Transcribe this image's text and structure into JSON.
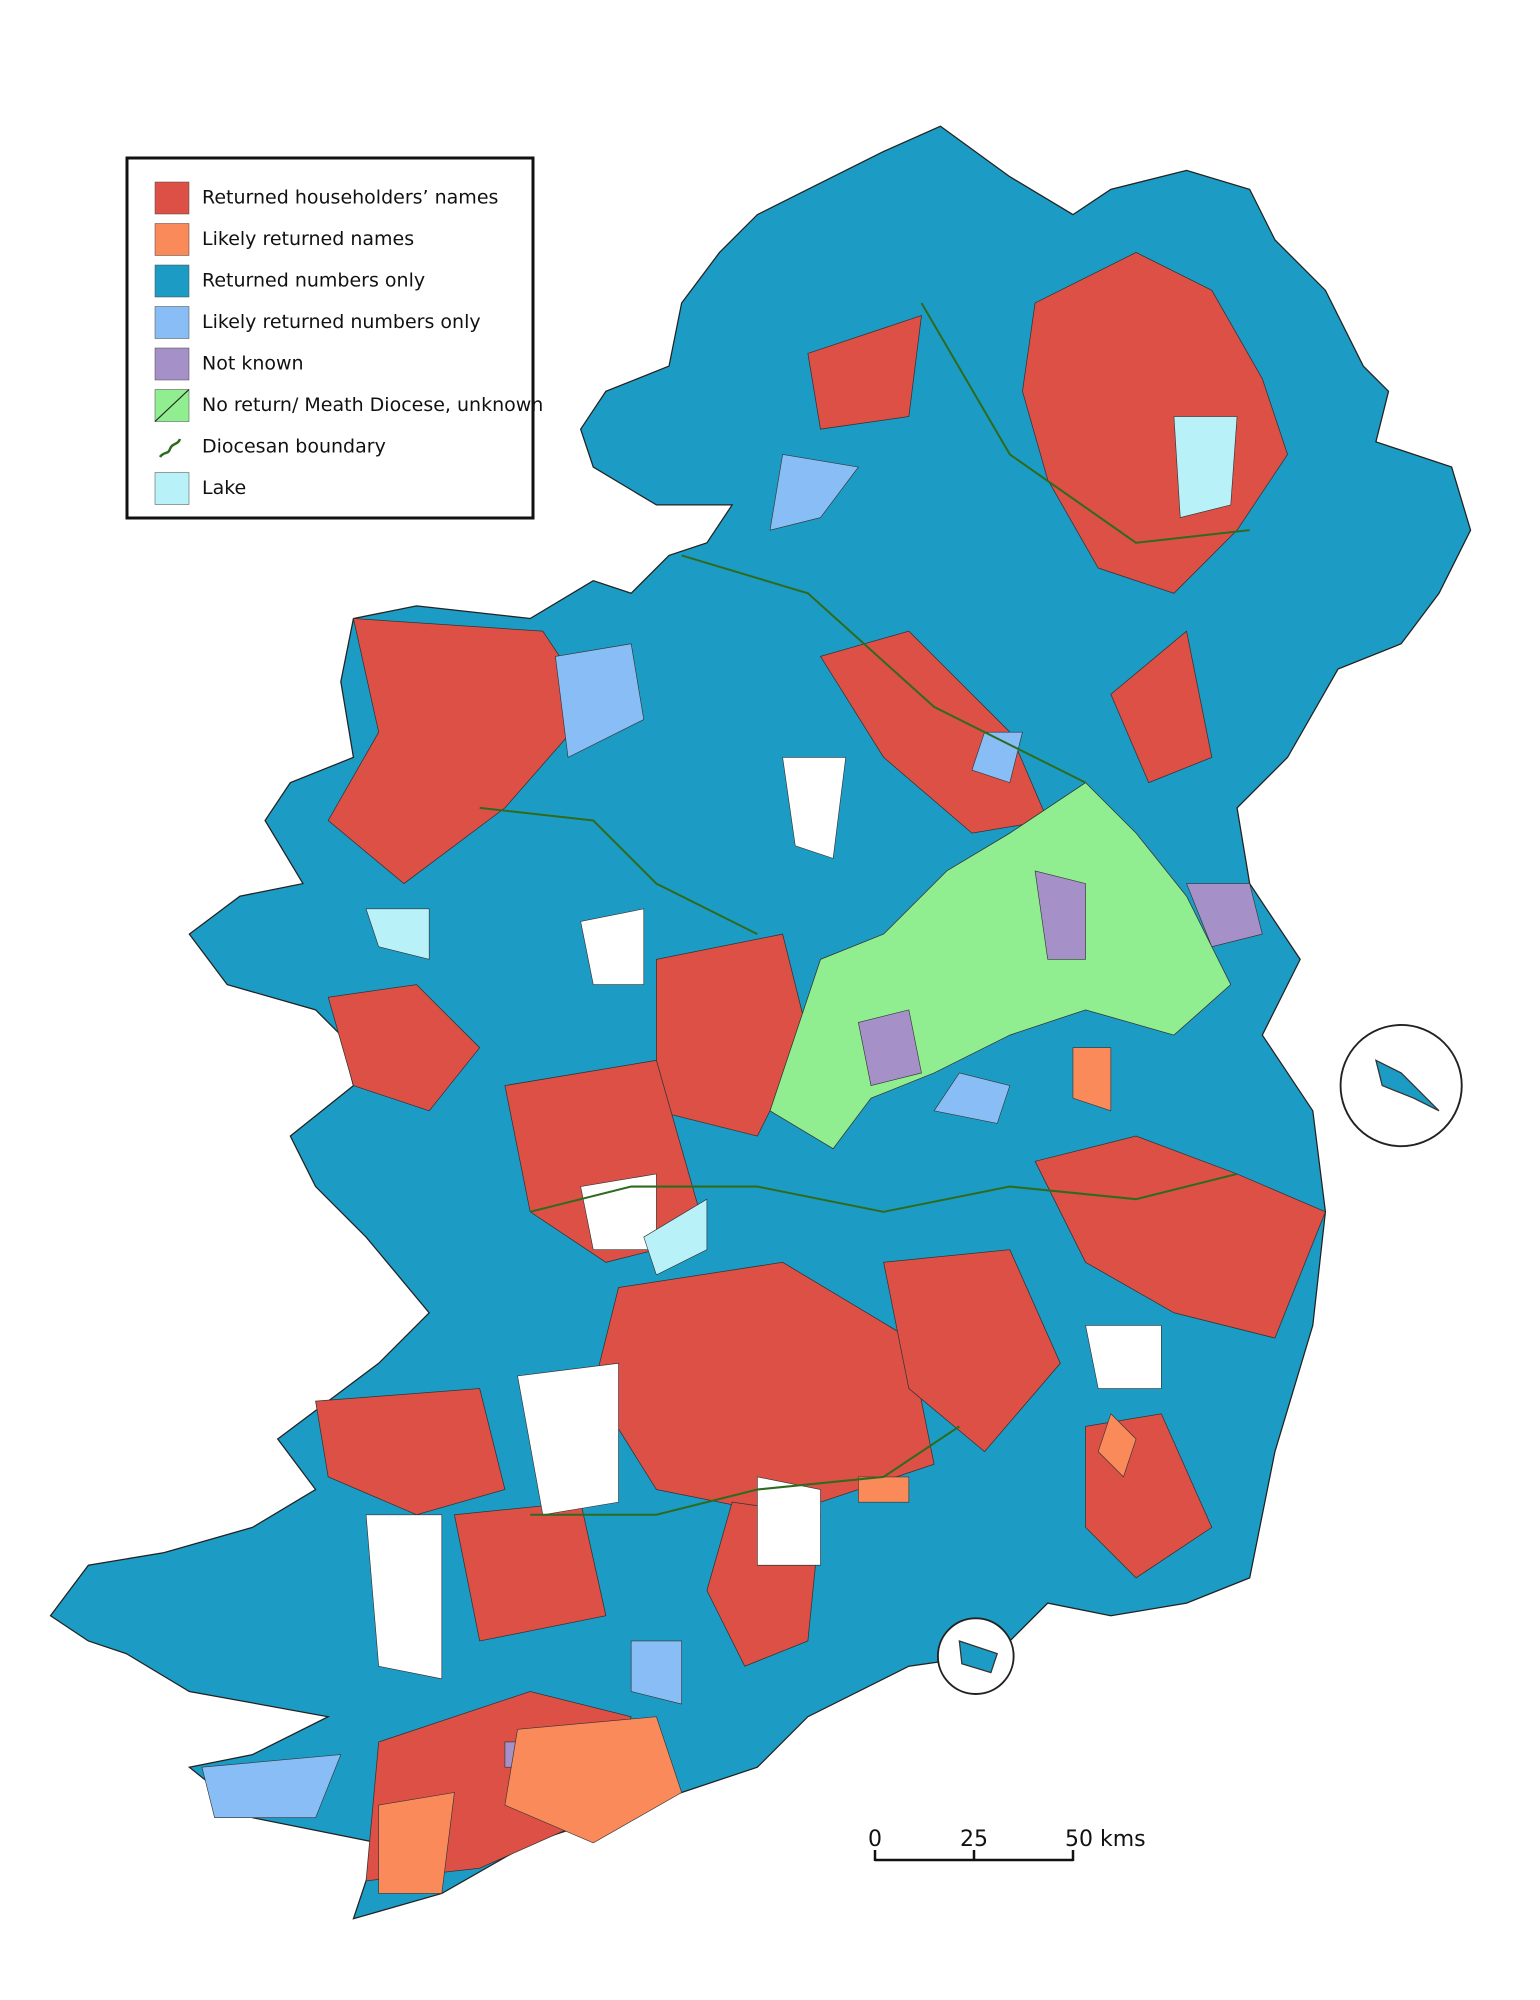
{
  "legend": {
    "items": [
      {
        "label": "Returned householders’ names",
        "color": "#dc5046"
      },
      {
        "label": "Likely returned names",
        "color": "#fa8a5a"
      },
      {
        "label": "Returned numbers only",
        "color": "#1c9cc4"
      },
      {
        "label": "Likely returned numbers only",
        "color": "#88bef5"
      },
      {
        "label": "Not known",
        "color": "#a590c8"
      },
      {
        "label": "No return/ Meath Diocese, unknown",
        "color": "#90ee90",
        "swatch": "hatched"
      },
      {
        "label": "Diocesan boundary",
        "color": "#2e6b1e",
        "swatch": "line"
      },
      {
        "label": "Lake",
        "color": "#b8f2f8"
      }
    ]
  },
  "scale_bar": {
    "ticks": [
      0,
      25,
      {
        "value": 50,
        "label": "50 kms"
      }
    ],
    "range": [
      0,
      50
    ]
  }
}
